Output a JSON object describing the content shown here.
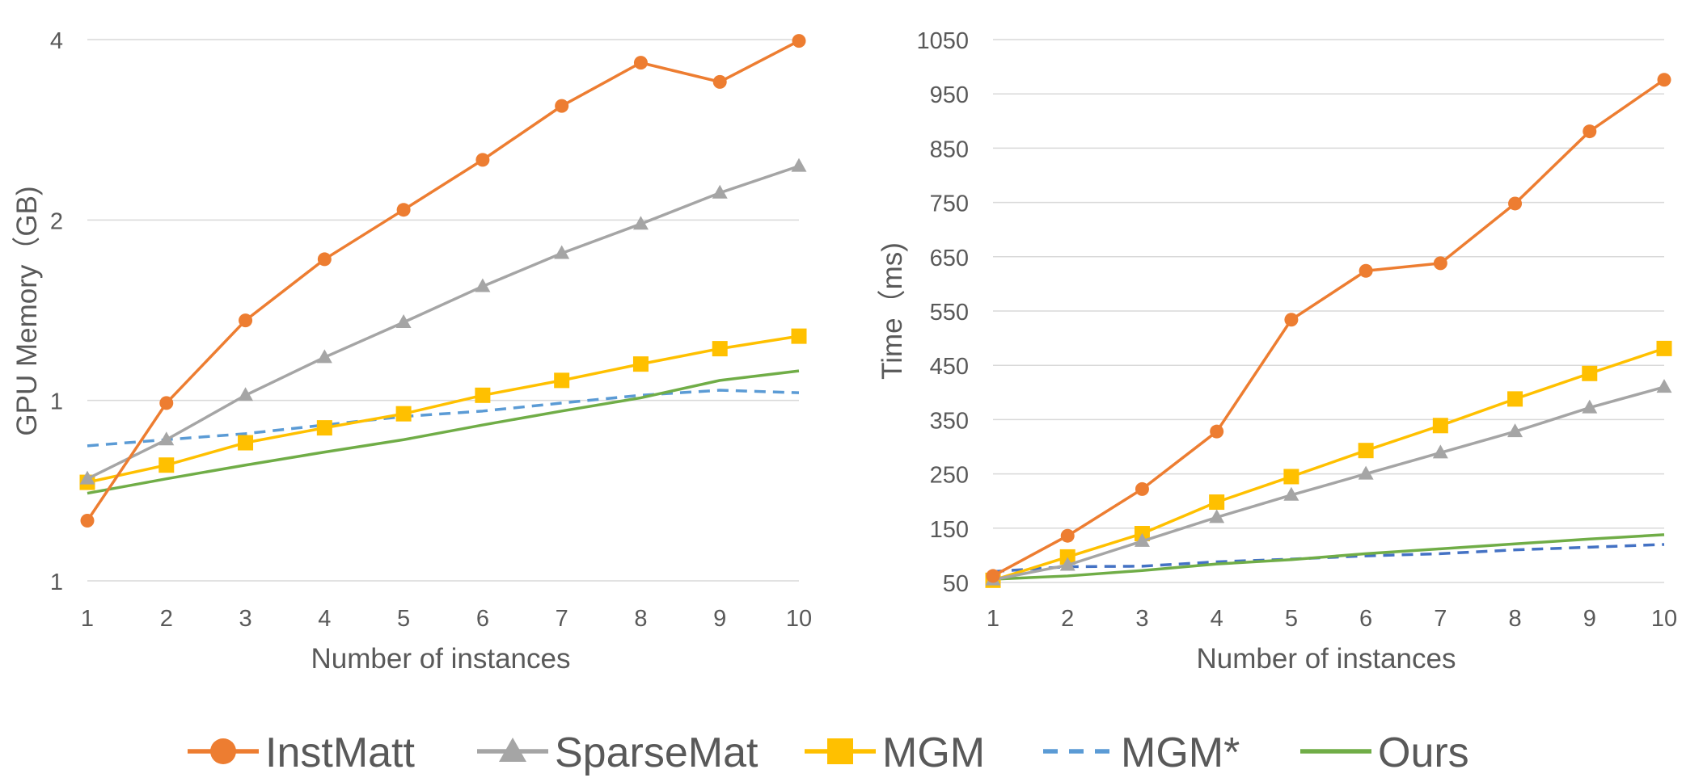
{
  "chart_data": [
    {
      "type": "line",
      "xlabel": "Number of instances",
      "ylabel": "GPU Memory（GB)",
      "yscale": "log2",
      "y_tick_labels": [
        "1",
        "1",
        "2",
        "4"
      ],
      "x": [
        1,
        2,
        3,
        4,
        5,
        6,
        7,
        8,
        9,
        10
      ],
      "grid": true,
      "series": [
        {
          "name": "InstMatt",
          "values": [
            0.63,
            0.99,
            1.36,
            1.72,
            2.08,
            2.52,
            3.1,
            3.66,
            3.4,
            3.98
          ]
        },
        {
          "name": "SparseMat",
          "values": [
            0.74,
            0.86,
            1.02,
            1.18,
            1.35,
            1.55,
            1.76,
            1.97,
            2.22,
            2.46
          ]
        },
        {
          "name": "MGM",
          "values": [
            0.73,
            0.78,
            0.85,
            0.9,
            0.95,
            1.02,
            1.08,
            1.15,
            1.22,
            1.28
          ]
        },
        {
          "name": "MGM*",
          "values": [
            0.84,
            0.86,
            0.88,
            0.91,
            0.94,
            0.96,
            0.99,
            1.02,
            1.04,
            1.03
          ]
        },
        {
          "name": "Ours",
          "values": [
            0.7,
            0.74,
            0.78,
            0.82,
            0.86,
            0.91,
            0.96,
            1.01,
            1.08,
            1.12
          ]
        }
      ]
    },
    {
      "type": "line",
      "xlabel": "Number of instances",
      "ylabel": "Time（ms)",
      "ylim": [
        50,
        1050
      ],
      "y_ticks": [
        50,
        150,
        250,
        350,
        450,
        550,
        650,
        750,
        850,
        950,
        1050
      ],
      "x": [
        1,
        2,
        3,
        4,
        5,
        6,
        7,
        8,
        9,
        10
      ],
      "grid": true,
      "series": [
        {
          "name": "InstMatt",
          "values": [
            62,
            136,
            222,
            328,
            534,
            624,
            638,
            748,
            881,
            976
          ]
        },
        {
          "name": "SparseMat",
          "values": [
            55,
            82,
            126,
            170,
            211,
            250,
            289,
            328,
            372,
            410
          ]
        },
        {
          "name": "MGM",
          "values": [
            54,
            97,
            140,
            198,
            245,
            293,
            339,
            388,
            435,
            481
          ]
        },
        {
          "name": "MGM*",
          "values": [
            70,
            79,
            80,
            88,
            93,
            99,
            103,
            110,
            115,
            120
          ]
        },
        {
          "name": "Ours",
          "values": [
            56,
            62,
            72,
            84,
            92,
            103,
            112,
            121,
            130,
            138
          ]
        }
      ]
    }
  ],
  "legend": {
    "placement": "bottom",
    "items": [
      {
        "label": "InstMatt",
        "color": "#ED7D31",
        "marker": "circle",
        "dash": false
      },
      {
        "label": "SparseMat",
        "color": "#A5A5A5",
        "marker": "triangle",
        "dash": false
      },
      {
        "label": "MGM",
        "color": "#FFC000",
        "marker": "square",
        "dash": false
      },
      {
        "label": "MGM*",
        "color": "#5B9BD5",
        "marker": "none",
        "dash": true
      },
      {
        "label": "Ours",
        "color": "#70AD47",
        "marker": "none",
        "dash": false
      }
    ]
  },
  "colors": {
    "InstMatt": "#ED7D31",
    "SparseMat": "#A5A5A5",
    "MGM": "#FFC000",
    "MGM*": "#5B9BD5",
    "MGM*_right": "#4472C4",
    "Ours": "#70AD47",
    "grid": "#D9D9D9",
    "text": "#595959"
  }
}
